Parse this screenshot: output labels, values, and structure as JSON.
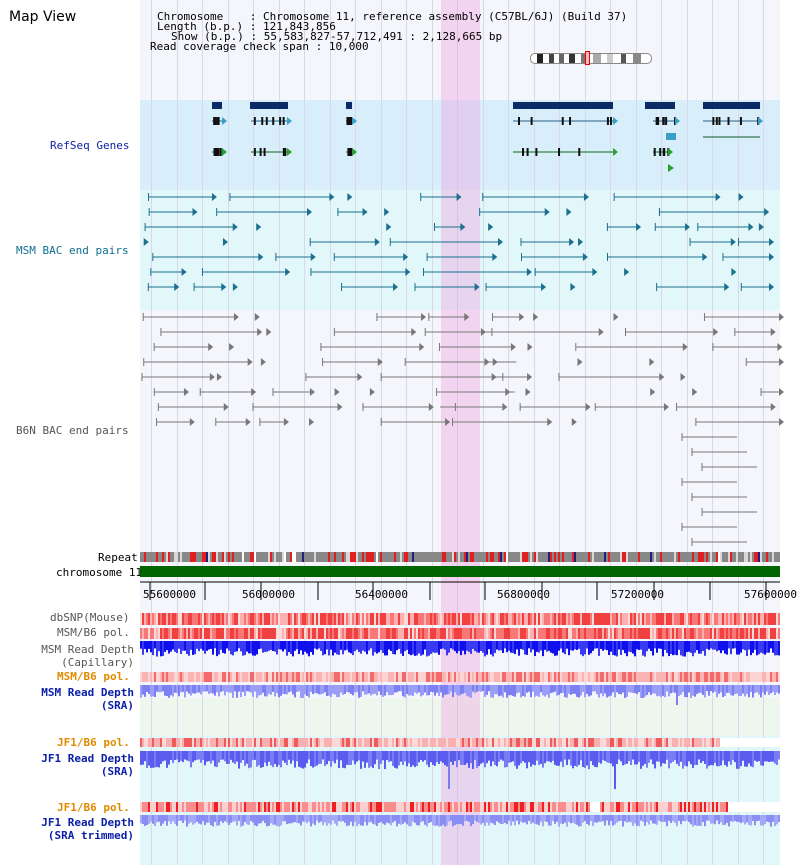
{
  "view_title": "Map View",
  "info": {
    "chromosome_label": "Chromosome",
    "chromosome_value": "Chromosome 11, reference assembly (C57BL/6J) (Build 37)",
    "length_label": "Length (b.p.)",
    "length_value": "121,843,856",
    "show_label": "Show (b.p.)",
    "show_value": "55,583,827-57,712,491 : 2,128,665 bp",
    "span_label": "Read coverage check span",
    "span_value": "10,000"
  },
  "tracks": {
    "refseq": "RefSeq Genes",
    "msm_bac": "MSM BAC end pairs",
    "b6n_bac": "B6N BAC end pairs",
    "repeat": "Repeat",
    "chromosome": "chromosome 11",
    "dbsnp": "dbSNP(Mouse)",
    "msm_b6_pol": "MSM/B6 pol.",
    "msm_read_depth_cap_1": "MSM Read Depth",
    "msm_read_depth_cap_2": "(Capillary)",
    "msm_b6_pol_sra": "MSM/B6 pol.",
    "msm_read_depth_sra_1": "MSM Read Depth",
    "msm_read_depth_sra_2": "(SRA)",
    "jf1_b6_pol_1": "JF1/B6 pol.",
    "jf1_read_depth_1": "JF1 Read Depth",
    "jf1_read_depth_2": "(SRA)",
    "jf1_b6_pol_2": "JF1/B6 pol.",
    "jf1_read_depth_trim_1": "JF1 Read Depth",
    "jf1_read_depth_trim_2": "(SRA trimmed)"
  },
  "axis_ticks": [
    "55600000",
    "56000000",
    "56400000",
    "56800000",
    "57200000",
    "57600000"
  ],
  "colors": {
    "refseq_bg": "#d6ecf8",
    "msm_bg": "#e0f6f8",
    "b6n_bg": "#f4f6fb",
    "chromosome_bar": "#006400",
    "highlight": "#f5c6ee",
    "depth_blue": "#1a2be6",
    "depth_light": "#8a8cf0"
  }
}
